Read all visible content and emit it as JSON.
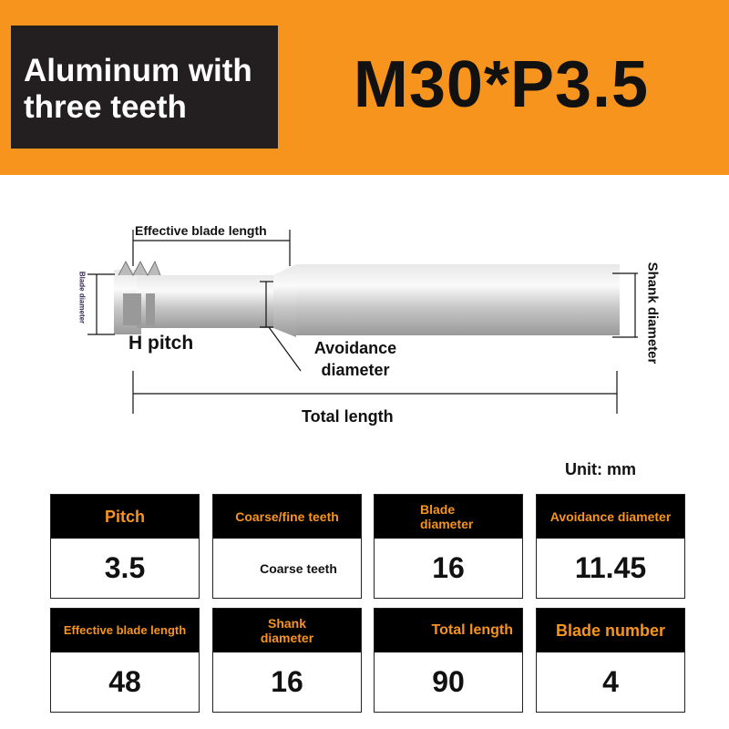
{
  "header": {
    "badge": "Aluminum with three teeth",
    "model": "M30*P3.5",
    "accent": "#f7941d"
  },
  "diagram": {
    "effective_blade_length": "Effective blade length",
    "blade_diameter": "Blade diameter",
    "h_pitch": "H pitch",
    "avoidance_diameter": "Avoidance diameter",
    "shank_diameter": "Shank diameter",
    "total_length": "Total length"
  },
  "unit": "Unit: mm",
  "specs": [
    {
      "label": "Pitch",
      "value": "3.5"
    },
    {
      "label": "Coarse/fine teeth",
      "value": "Coarse teeth"
    },
    {
      "label": "Blade diameter",
      "value": "16"
    },
    {
      "label": "Avoidance diameter",
      "value": "11.45"
    },
    {
      "label": "Effective blade length",
      "value": "48"
    },
    {
      "label": "Shank diameter",
      "value": "16"
    },
    {
      "label": "Total length",
      "value": "90"
    },
    {
      "label": "Blade number",
      "value": "4"
    }
  ]
}
